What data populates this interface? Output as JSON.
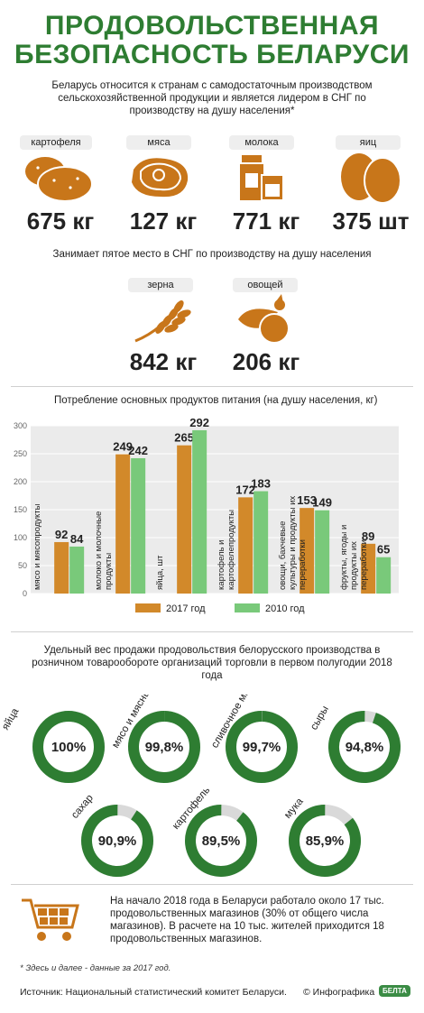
{
  "colors": {
    "green": "#2e7d32",
    "orange": "#d2892a",
    "light_green": "#79c97a",
    "ring_gray": "#d9d9d9",
    "icon_orange": "#c8761a"
  },
  "header": {
    "title_line1": "ПРОДОВОЛЬСТВЕННАЯ",
    "title_line2": "БЕЗОПАСНОСТЬ БЕЛАРУСИ"
  },
  "intro": "Беларусь относится к странам с самодостаточным производством сельскохозяйственной продукции и является лидером в СНГ по производству на душу населения*",
  "leaders": [
    {
      "label": "картофеля",
      "value": "675 кг",
      "icon": "potato-icon"
    },
    {
      "label": "мяса",
      "value": "127 кг",
      "icon": "meat-icon"
    },
    {
      "label": "молока",
      "value": "771 кг",
      "icon": "milk-icon"
    },
    {
      "label": "яиц",
      "value": "375 шт",
      "icon": "eggs-icon"
    }
  ],
  "fifth_place": {
    "subtitle": "Занимает пятое место в СНГ по производству на душу населения",
    "items": [
      {
        "label": "зерна",
        "value": "842 кг",
        "icon": "wheat-icon"
      },
      {
        "label": "овощей",
        "value": "206 кг",
        "icon": "vegetables-icon"
      }
    ]
  },
  "chart_data": [
    {
      "type": "bar",
      "title": "Потребление основных продуктов питания (на душу населения, кг)",
      "categories": [
        "мясо и мясопродукты",
        "молоко и молочные продукты",
        "яйца, шт",
        "картофель и картофелепродукты",
        "овощи, бахчевые культуры и продукты их переработки",
        "фрукты, ягоды и продукты их переработки"
      ],
      "series": [
        {
          "name": "2017 год",
          "values": [
            92,
            249,
            265,
            172,
            153,
            89
          ]
        },
        {
          "name": "2010 год",
          "values": [
            84,
            242,
            292,
            183,
            149,
            65
          ]
        }
      ],
      "ylim": [
        0,
        300
      ],
      "yticks": [
        0,
        50,
        100,
        150,
        200,
        250,
        300
      ],
      "legend": "bottom"
    },
    {
      "type": "pie",
      "title": "Удельный вес продажи продовольствия белорусского производства в розничном товарообороте организаций торговли в первом полугодии 2018 года",
      "categories": [
        "яйца",
        "мясо и мясные продукты",
        "сливочное масло",
        "сыры",
        "сахар",
        "картофель",
        "мука"
      ],
      "values": [
        100,
        99.8,
        99.7,
        94.8,
        90.9,
        89.5,
        85.9
      ],
      "labels": [
        "100%",
        "99,8%",
        "99,7%",
        "94,8%",
        "90,9%",
        "89,5%",
        "85,9%"
      ]
    }
  ],
  "stores": "На начало 2018 года в Беларуси работало около 17 тыс. продовольственных магазинов (30% от общего числа магазинов). В расчете на 10 тыс. жителей приходится 18 продовольственных магазинов.",
  "footnote": "* Здесь и далее - данные за 2017 год.",
  "source": "Источник: Национальный статистический комитет Беларуси.",
  "credit": "© Инфографика",
  "logo_text": "БЕЛТА"
}
